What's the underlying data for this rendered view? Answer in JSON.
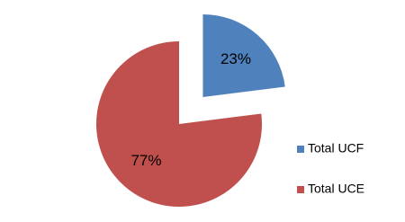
{
  "chart_data": {
    "type": "pie",
    "categories": [
      "Total UCF",
      "Total UCE"
    ],
    "values": [
      23,
      77
    ],
    "value_labels": [
      "23%",
      "77%"
    ],
    "colors": [
      "#4f81bd",
      "#c0504d"
    ],
    "exploded": [
      true,
      false
    ],
    "legend": "right"
  }
}
